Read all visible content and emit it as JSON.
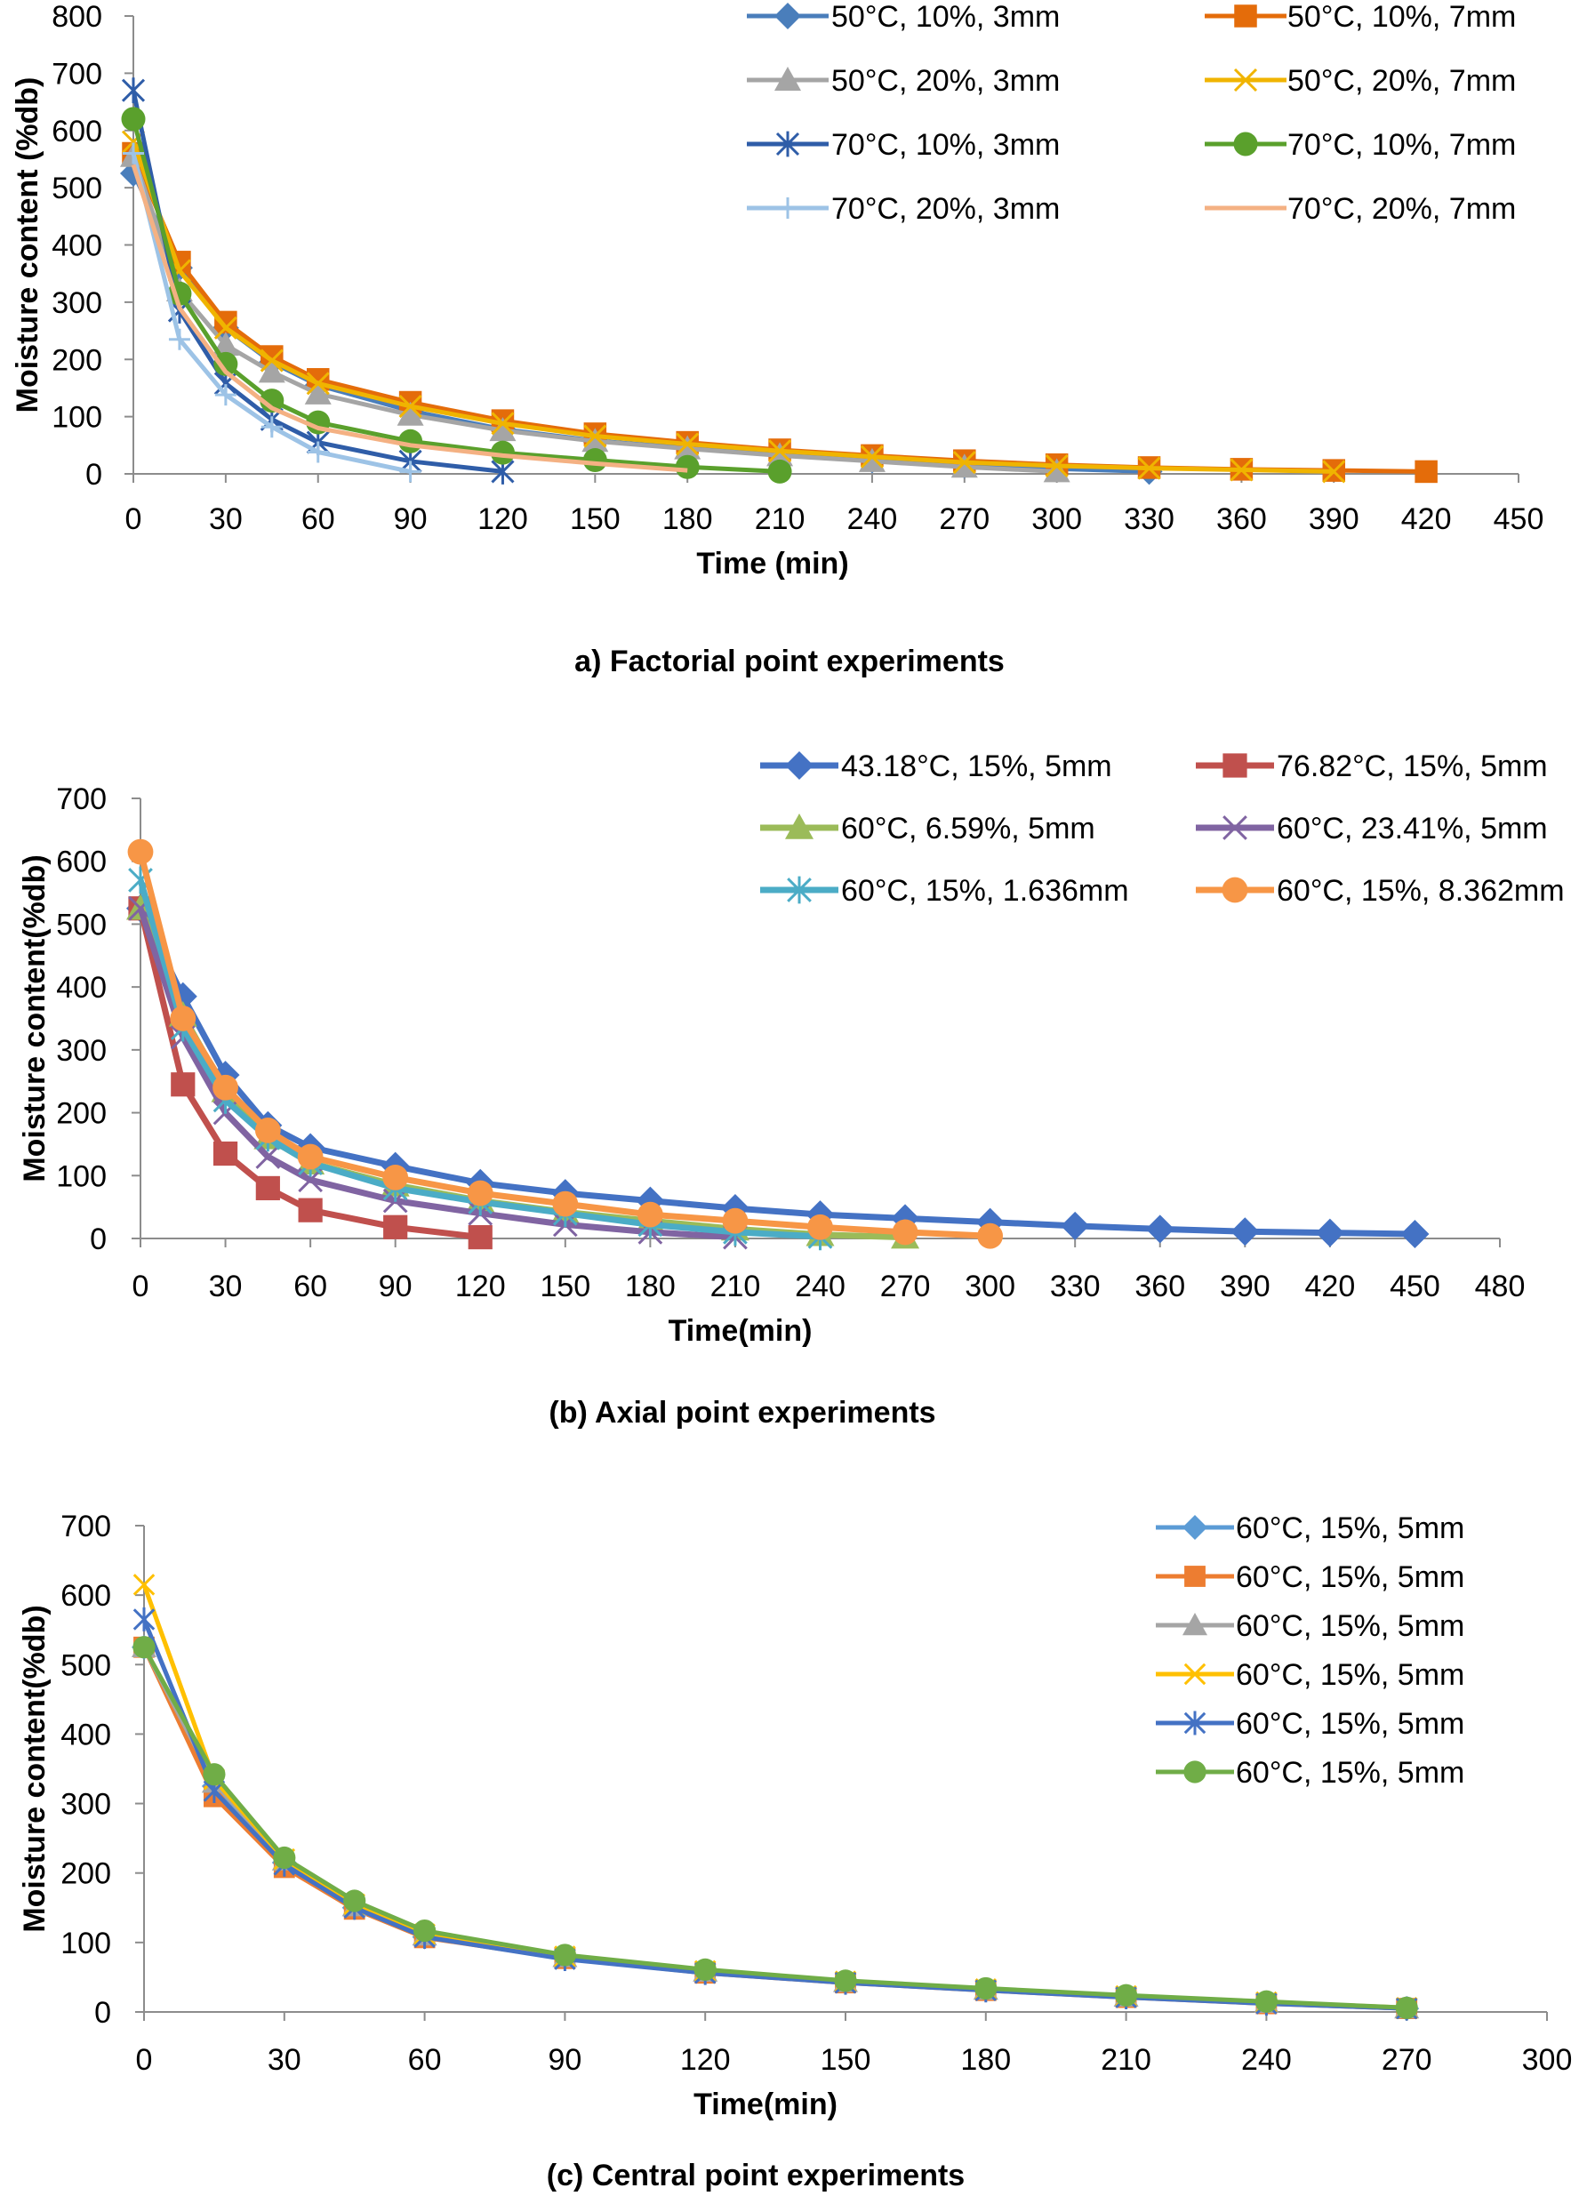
{
  "chart_data": [
    {
      "type": "line",
      "caption": "a)    Factorial point experiments",
      "xlabel": "Time (min)",
      "ylabel": "Moisture content (%db)",
      "xlim": [
        0,
        450
      ],
      "ylim": [
        0,
        800
      ],
      "xticks": [
        0,
        30,
        60,
        90,
        120,
        150,
        180,
        210,
        240,
        270,
        300,
        330,
        360,
        390,
        420,
        450
      ],
      "yticks": [
        0,
        100,
        200,
        300,
        400,
        500,
        600,
        700,
        800
      ],
      "legend_position": "top-right",
      "series": [
        {
          "name": "50°C, 10%, 3mm",
          "color": "#4a7ebb",
          "marker": "diamond",
          "x": [
            0,
            15,
            30,
            45,
            60,
            90,
            120,
            150,
            180,
            210,
            240,
            270,
            300,
            330
          ],
          "y": [
            525,
            360,
            255,
            195,
            155,
            110,
            78,
            58,
            45,
            33,
            24,
            15,
            9,
            4
          ]
        },
        {
          "name": "50°C, 10%, 7mm",
          "color": "#e46c0a",
          "marker": "square",
          "x": [
            0,
            15,
            30,
            45,
            60,
            90,
            120,
            150,
            180,
            210,
            240,
            270,
            300,
            330,
            360,
            390,
            420
          ],
          "y": [
            560,
            370,
            265,
            205,
            165,
            125,
            93,
            70,
            55,
            42,
            32,
            23,
            16,
            11,
            8,
            6,
            4
          ]
        },
        {
          "name": "50°C, 20%, 3mm",
          "color": "#a5a5a5",
          "marker": "triangle",
          "x": [
            0,
            15,
            30,
            45,
            60,
            90,
            120,
            150,
            180,
            210,
            240,
            270,
            300
          ],
          "y": [
            555,
            320,
            225,
            178,
            140,
            103,
            76,
            57,
            44,
            32,
            22,
            12,
            4
          ]
        },
        {
          "name": "50°C, 20%, 7mm",
          "color": "#f0b400",
          "marker": "x",
          "x": [
            0,
            15,
            30,
            45,
            60,
            90,
            120,
            150,
            180,
            210,
            240,
            270,
            300,
            330,
            360,
            390
          ],
          "y": [
            580,
            355,
            255,
            198,
            158,
            118,
            88,
            66,
            52,
            40,
            30,
            20,
            14,
            10,
            7,
            4
          ]
        },
        {
          "name": "70°C, 10%, 3mm",
          "color": "#2f5da8",
          "marker": "star",
          "x": [
            0,
            15,
            30,
            45,
            60,
            90,
            120
          ],
          "y": [
            670,
            285,
            158,
            95,
            55,
            22,
            4
          ]
        },
        {
          "name": "70°C, 10%, 7mm",
          "color": "#5aa02c",
          "marker": "circle",
          "x": [
            0,
            15,
            30,
            45,
            60,
            90,
            120,
            150,
            180,
            210
          ],
          "y": [
            620,
            315,
            192,
            128,
            90,
            57,
            37,
            24,
            12,
            4
          ]
        },
        {
          "name": "70°C, 20%, 3mm",
          "color": "#9dc3e6",
          "marker": "plus",
          "x": [
            0,
            15,
            30,
            45,
            60,
            90
          ],
          "y": [
            560,
            235,
            138,
            82,
            38,
            4
          ]
        },
        {
          "name": "70°C, 20%, 7mm",
          "color": "#f4b183",
          "marker": "none",
          "x": [
            0,
            15,
            30,
            45,
            60,
            90,
            120,
            150,
            180
          ],
          "y": [
            540,
            290,
            178,
            115,
            80,
            50,
            32,
            18,
            6
          ]
        }
      ]
    },
    {
      "type": "line",
      "caption": "(b) Axial point experiments",
      "xlabel": "Time(min)",
      "ylabel": "Moisture content(%db)",
      "xlim": [
        0,
        480
      ],
      "ylim": [
        0,
        700
      ],
      "xticks": [
        0,
        30,
        60,
        90,
        120,
        150,
        180,
        210,
        240,
        270,
        300,
        330,
        360,
        390,
        420,
        450,
        480
      ],
      "yticks": [
        0,
        100,
        200,
        300,
        400,
        500,
        600,
        700
      ],
      "legend_position": "top-right",
      "series": [
        {
          "name": "43.18°C, 15%, 5mm",
          "color": "#4472c4",
          "marker": "diamond",
          "x": [
            0,
            15,
            30,
            45,
            60,
            90,
            120,
            150,
            180,
            210,
            240,
            270,
            300,
            330,
            360,
            390,
            420,
            450
          ],
          "y": [
            525,
            385,
            260,
            180,
            145,
            115,
            88,
            72,
            60,
            48,
            38,
            32,
            26,
            20,
            15,
            11,
            9,
            7
          ]
        },
        {
          "name": "76.82°C, 15%, 5mm",
          "color": "#c0504d",
          "marker": "square",
          "x": [
            0,
            15,
            30,
            45,
            60,
            90,
            120
          ],
          "y": [
            525,
            245,
            135,
            80,
            45,
            18,
            2
          ]
        },
        {
          "name": "60°C, 6.59%, 5mm",
          "color": "#9bbb59",
          "marker": "triangle",
          "x": [
            0,
            15,
            30,
            45,
            60,
            90,
            120,
            150,
            180,
            210,
            240,
            270
          ],
          "y": [
            525,
            355,
            235,
            160,
            120,
            85,
            60,
            42,
            28,
            15,
            6,
            2
          ]
        },
        {
          "name": "60°C, 23.41%, 5mm",
          "color": "#8064a2",
          "marker": "x",
          "x": [
            0,
            15,
            30,
            45,
            60,
            90,
            120,
            150,
            180,
            210
          ],
          "y": [
            525,
            320,
            200,
            130,
            93,
            60,
            40,
            22,
            10,
            2
          ]
        },
        {
          "name": "60°C, 15%, 1.636mm",
          "color": "#4bacc6",
          "marker": "star",
          "x": [
            0,
            15,
            30,
            45,
            60,
            90,
            120,
            150,
            180,
            210,
            240
          ],
          "y": [
            570,
            335,
            220,
            160,
            120,
            80,
            58,
            40,
            22,
            10,
            3
          ]
        },
        {
          "name": "60°C, 15%, 8.362mm",
          "color": "#f79646",
          "marker": "circle",
          "x": [
            0,
            15,
            30,
            45,
            60,
            90,
            120,
            150,
            180,
            210,
            240,
            270,
            300
          ],
          "y": [
            615,
            350,
            240,
            172,
            130,
            97,
            72,
            55,
            38,
            28,
            18,
            10,
            4
          ]
        }
      ]
    },
    {
      "type": "line",
      "caption": "(c) Central point experiments",
      "xlabel": "Time(min)",
      "ylabel": "Moisture content(%db)",
      "xlim": [
        0,
        300
      ],
      "ylim": [
        0,
        700
      ],
      "xticks": [
        0,
        30,
        60,
        90,
        120,
        150,
        180,
        210,
        240,
        270,
        300
      ],
      "yticks": [
        0,
        100,
        200,
        300,
        400,
        500,
        600,
        700
      ],
      "legend_position": "top-right",
      "series": [
        {
          "name": "60°C, 15%, 5mm",
          "color": "#5b9bd5",
          "marker": "diamond",
          "x": [
            0,
            15,
            30,
            45,
            60,
            90,
            120,
            150,
            180,
            210,
            240,
            270
          ],
          "y": [
            525,
            325,
            215,
            150,
            108,
            78,
            58,
            43,
            32,
            22,
            13,
            5
          ]
        },
        {
          "name": "60°C, 15%, 5mm",
          "color": "#ed7d31",
          "marker": "square",
          "x": [
            0,
            15,
            30,
            45,
            60,
            90,
            120,
            150,
            180,
            210,
            240,
            270
          ],
          "y": [
            525,
            310,
            208,
            148,
            107,
            77,
            56,
            42,
            31,
            21,
            12,
            5
          ]
        },
        {
          "name": "60°C, 15%, 5mm",
          "color": "#a5a5a5",
          "marker": "triangle",
          "x": [
            0,
            15,
            30,
            45,
            60,
            90,
            120,
            150,
            180,
            210,
            240,
            270
          ],
          "y": [
            525,
            330,
            218,
            152,
            110,
            79,
            58,
            43,
            32,
            22,
            13,
            5
          ]
        },
        {
          "name": "60°C, 15%, 5mm",
          "color": "#ffc000",
          "marker": "x",
          "x": [
            0,
            15,
            30,
            45,
            60,
            90,
            120,
            150,
            180,
            210,
            240,
            270
          ],
          "y": [
            615,
            335,
            220,
            155,
            112,
            80,
            59,
            44,
            33,
            23,
            14,
            6
          ]
        },
        {
          "name": "60°C, 15%, 5mm",
          "color": "#4472c4",
          "marker": "star",
          "x": [
            0,
            15,
            30,
            45,
            60,
            90,
            120,
            150,
            180,
            210,
            240,
            270
          ],
          "y": [
            565,
            318,
            212,
            150,
            108,
            76,
            56,
            42,
            31,
            21,
            12,
            5
          ]
        },
        {
          "name": "60°C, 15%, 5mm",
          "color": "#70ad47",
          "marker": "circle",
          "x": [
            0,
            15,
            30,
            45,
            60,
            90,
            120,
            150,
            180,
            210,
            240,
            270
          ],
          "y": [
            525,
            342,
            222,
            160,
            117,
            82,
            61,
            45,
            34,
            24,
            15,
            6
          ]
        }
      ]
    }
  ]
}
